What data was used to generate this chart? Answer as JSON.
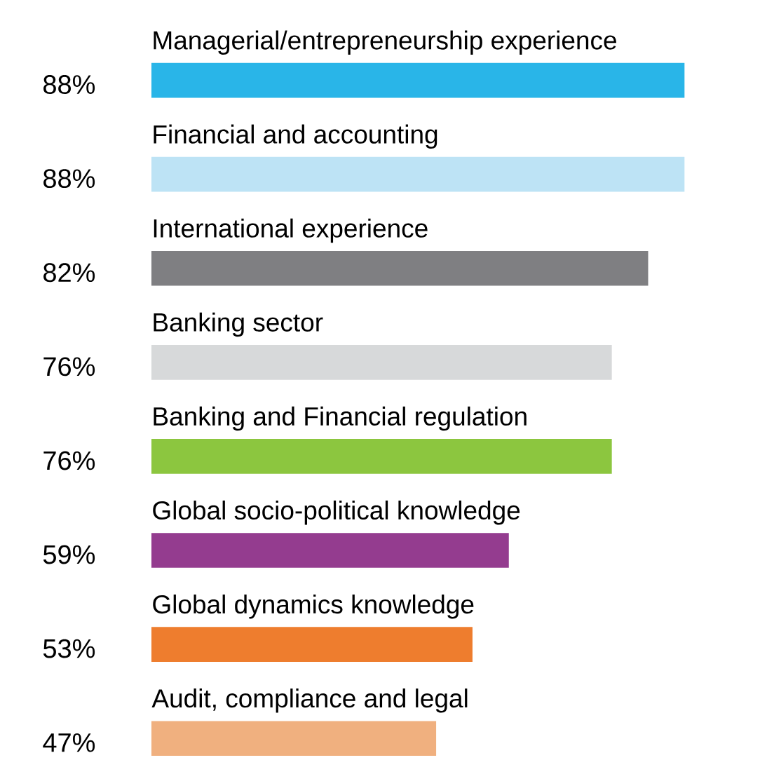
{
  "chart_data": {
    "type": "bar",
    "orientation": "horizontal",
    "categories": [
      "Managerial/entrepreneurship experience",
      "Financial and accounting",
      "International experience",
      "Banking sector",
      "Banking and Financial regulation",
      "Global socio-political knowledge",
      "Global dynamics knowledge",
      "Audit, compliance and legal"
    ],
    "values": [
      88,
      88,
      82,
      76,
      76,
      59,
      53,
      47
    ],
    "value_labels": [
      "88%",
      "88%",
      "82%",
      "76%",
      "76%",
      "59%",
      "53%",
      "47%"
    ],
    "colors": [
      "#29b5e8",
      "#bde3f5",
      "#7f7f82",
      "#d7d9da",
      "#8cc63f",
      "#943c8f",
      "#ee7d2e",
      "#f0b07f"
    ]
  }
}
